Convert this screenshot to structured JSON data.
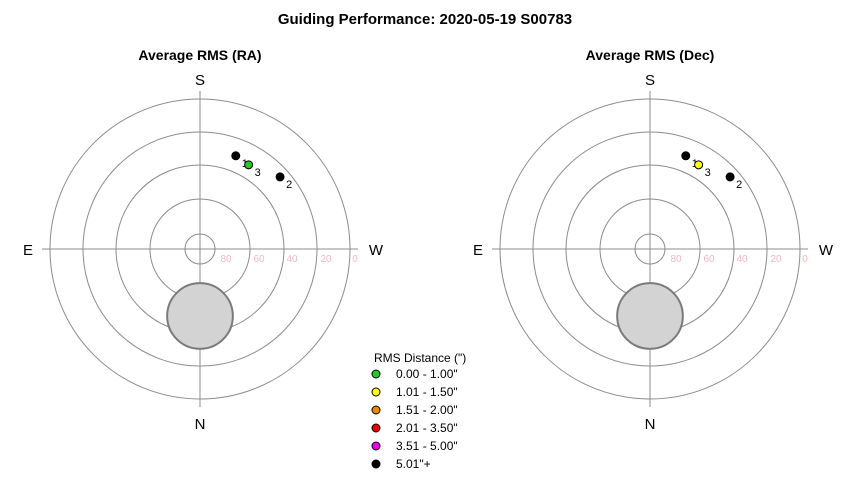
{
  "page": {
    "title": "Guiding Performance: 2020-05-19 S00783"
  },
  "colors": {
    "ring": "#8c8c8c",
    "axis": "#8c8c8c",
    "tick_label": "#f0b8c0",
    "obstruction_fill": "#d3d3d3",
    "obstruction_stroke": "#7a7a7a",
    "text": "#000000"
  },
  "chart_data": [
    {
      "type": "scatter",
      "projection": "polar-altaz",
      "title": "Average RMS (RA)",
      "directions": {
        "top": "S",
        "bottom": "N",
        "left": "E",
        "right": "W"
      },
      "altitude_rings": [
        0,
        15,
        40,
        60,
        80
      ],
      "altitude_tick_labels": [
        "80",
        "60",
        "40",
        "20",
        "0"
      ],
      "obstruction": {
        "label": "",
        "azimuth_deg": 0,
        "altitude_deg": 50,
        "radius_alt_deg": 22
      },
      "points": [
        {
          "label": "1",
          "azimuth_deg": 159,
          "altitude_deg": 28,
          "rms_class": "5.01\"+"
        },
        {
          "label": "2",
          "azimuth_deg": 132,
          "altitude_deg": 22,
          "rms_class": "5.01\"+"
        },
        {
          "label": "3",
          "azimuth_deg": 150,
          "altitude_deg": 30,
          "rms_class": "0.00 - 1.00\""
        }
      ]
    },
    {
      "type": "scatter",
      "projection": "polar-altaz",
      "title": "Average RMS (Dec)",
      "directions": {
        "top": "S",
        "bottom": "N",
        "left": "E",
        "right": "W"
      },
      "altitude_rings": [
        0,
        15,
        40,
        60,
        80
      ],
      "altitude_tick_labels": [
        "80",
        "60",
        "40",
        "20",
        "0"
      ],
      "obstruction": {
        "label": "",
        "azimuth_deg": 0,
        "altitude_deg": 50,
        "radius_alt_deg": 22
      },
      "points": [
        {
          "label": "1",
          "azimuth_deg": 159,
          "altitude_deg": 28,
          "rms_class": "5.01\"+"
        },
        {
          "label": "2",
          "azimuth_deg": 132,
          "altitude_deg": 22,
          "rms_class": "5.01\"+"
        },
        {
          "label": "3",
          "azimuth_deg": 150,
          "altitude_deg": 30,
          "rms_class": "1.01 - 1.50\""
        }
      ]
    }
  ],
  "legend": {
    "title": "RMS Distance (\")",
    "placement": "bottom-center",
    "items": [
      {
        "label": "0.00 - 1.00\"",
        "color": "#22cc22"
      },
      {
        "label": "1.01 - 1.50\"",
        "color": "#ffff00"
      },
      {
        "label": "1.51 - 2.00\"",
        "color": "#ee8800"
      },
      {
        "label": "2.01 - 3.50\"",
        "color": "#ee0000"
      },
      {
        "label": "3.51 - 5.00\"",
        "color": "#ee00ee"
      },
      {
        "label": "5.01\"+",
        "color": "#000000"
      }
    ]
  }
}
